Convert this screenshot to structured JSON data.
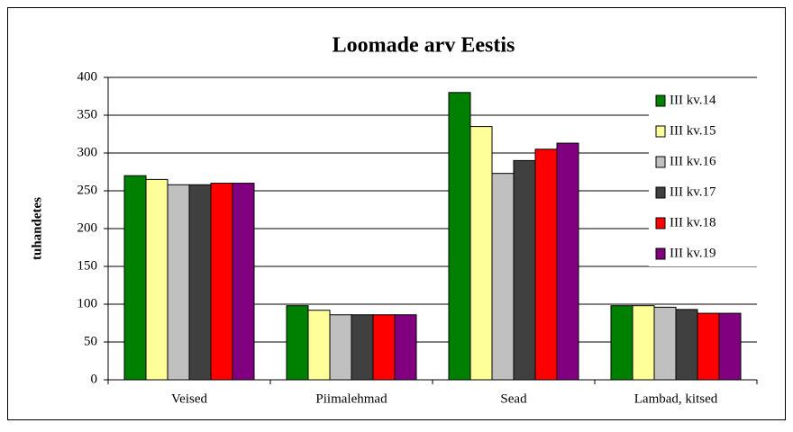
{
  "chart_data": {
    "type": "bar",
    "title": "Loomade arv Eestis",
    "y_label": "tuhandetes",
    "categories": [
      "Veised",
      "Piimalehmad",
      "Sead",
      "Lambad, kitsed"
    ],
    "series": [
      {
        "name": "III kv.14",
        "color": "#008000",
        "values": [
          270,
          98,
          380,
          98
        ]
      },
      {
        "name": "III kv.15",
        "color": "#ffff99",
        "values": [
          265,
          92,
          335,
          98
        ]
      },
      {
        "name": "III kv.16",
        "color": "#c0c0c0",
        "values": [
          258,
          86,
          273,
          96
        ]
      },
      {
        "name": "III kv.17",
        "color": "#404040",
        "values": [
          258,
          86,
          290,
          93
        ]
      },
      {
        "name": "III kv.18",
        "color": "#ff0000",
        "values": [
          260,
          86,
          305,
          88
        ]
      },
      {
        "name": "III kv.19",
        "color": "#800080",
        "values": [
          260,
          86,
          313,
          88
        ]
      }
    ],
    "ylim": [
      0,
      400
    ],
    "yticks": [
      0,
      50,
      100,
      150,
      200,
      250,
      300,
      350,
      400
    ],
    "grid": true,
    "legend": "right"
  }
}
